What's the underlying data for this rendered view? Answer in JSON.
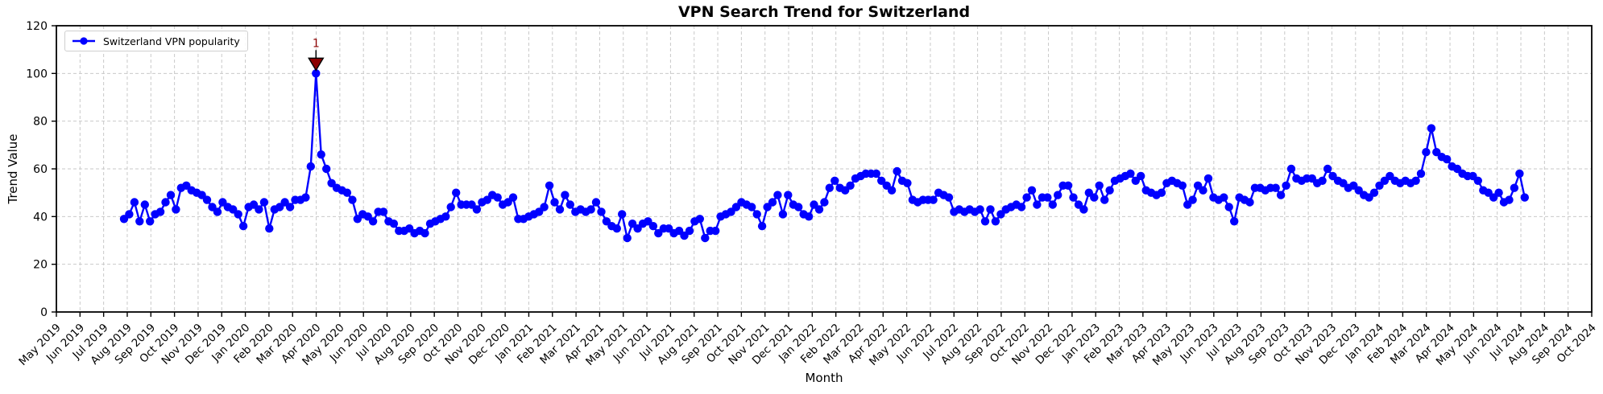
{
  "chart_data": {
    "type": "line",
    "title": "VPN Search Trend for Switzerland",
    "xlabel": "Month",
    "ylabel": "Trend Value",
    "legend": {
      "position": "upper left",
      "label": "Switzerland VPN popularity"
    },
    "grid": true,
    "ylim": [
      0,
      120
    ],
    "yticks": [
      0,
      20,
      40,
      60,
      80,
      100,
      120
    ],
    "x_tick_labels": [
      "May 2019",
      "Jun 2019",
      "Jul 2019",
      "Aug 2019",
      "Sep 2019",
      "Oct 2019",
      "Nov 2019",
      "Dec 2019",
      "Jan 2020",
      "Feb 2020",
      "Mar 2020",
      "Apr 2020",
      "May 2020",
      "Jun 2020",
      "Jul 2020",
      "Aug 2020",
      "Sep 2020",
      "Oct 2020",
      "Nov 2020",
      "Dec 2020",
      "Jan 2021",
      "Feb 2021",
      "Mar 2021",
      "Apr 2021",
      "May 2021",
      "Jun 2021",
      "Jul 2021",
      "Aug 2021",
      "Sep 2021",
      "Oct 2021",
      "Nov 2021",
      "Dec 2021",
      "Jan 2022",
      "Feb 2022",
      "Mar 2022",
      "Apr 2022",
      "May 2022",
      "Jun 2022",
      "Jul 2022",
      "Aug 2022",
      "Sep 2022",
      "Oct 2022",
      "Nov 2022",
      "Dec 2022",
      "Jan 2023",
      "Feb 2023",
      "Mar 2023",
      "Apr 2023",
      "May 2023",
      "Jun 2023",
      "Jul 2023",
      "Aug 2023",
      "Sep 2023",
      "Oct 2023",
      "Nov 2023",
      "Dec 2023",
      "Jan 2024",
      "Feb 2024",
      "Mar 2024",
      "Apr 2024",
      "May 2024",
      "Jun 2024",
      "Jul 2024",
      "Aug 2024",
      "Sep 2024",
      "Oct 2024"
    ],
    "series": [
      {
        "name": "Switzerland VPN popularity",
        "color": "#0000ff",
        "marker": "circle",
        "cadence": "weekly",
        "values": [
          39,
          41,
          46,
          38,
          45,
          38,
          41,
          42,
          46,
          49,
          43,
          52,
          53,
          51,
          50,
          49,
          47,
          44,
          42,
          46,
          44,
          43,
          41,
          36,
          44,
          45,
          43,
          46,
          35,
          43,
          44,
          46,
          44,
          47,
          47,
          48,
          61,
          100,
          66,
          60,
          54,
          52,
          51,
          50,
          47,
          39,
          41,
          40,
          38,
          42,
          42,
          38,
          37,
          34,
          34,
          35,
          33,
          34,
          33,
          37,
          38,
          39,
          40,
          44,
          50,
          45,
          45,
          45,
          43,
          46,
          47,
          49,
          48,
          45,
          46,
          48,
          39,
          39,
          40,
          41,
          42,
          44,
          53,
          46,
          43,
          49,
          45,
          42,
          43,
          42,
          43,
          46,
          42,
          38,
          36,
          35,
          41,
          31,
          37,
          35,
          37,
          38,
          36,
          33,
          35,
          35,
          33,
          34,
          32,
          34,
          38,
          39,
          31,
          34,
          34,
          40,
          41,
          42,
          44,
          46,
          45,
          44,
          41,
          36,
          44,
          46,
          49,
          41,
          49,
          45,
          44,
          41,
          40,
          45,
          43,
          46,
          52,
          55,
          52,
          51,
          53,
          56,
          57,
          58,
          58,
          58,
          55,
          53,
          51,
          59,
          55,
          54,
          47,
          46,
          47,
          47,
          47,
          50,
          49,
          48,
          42,
          43,
          42,
          43,
          42,
          43,
          38,
          43,
          38,
          41,
          43,
          44,
          45,
          44,
          48,
          51,
          45,
          48,
          48,
          45,
          49,
          53,
          53,
          48,
          45,
          43,
          50,
          48,
          53,
          47,
          51,
          55,
          56,
          57,
          58,
          55,
          57,
          51,
          50,
          49,
          50,
          54,
          55,
          54,
          53,
          45,
          47,
          53,
          51,
          56,
          48,
          47,
          48,
          44,
          38,
          48,
          47,
          46,
          52,
          52,
          51,
          52,
          52,
          49,
          53,
          60,
          56,
          55,
          56,
          56,
          54,
          55,
          60,
          57,
          55,
          54,
          52,
          53,
          51,
          49,
          48,
          50,
          53,
          55,
          57,
          55,
          54,
          55,
          54,
          55,
          58,
          67,
          77,
          67,
          65,
          64,
          61,
          60,
          58,
          57,
          57,
          55,
          51,
          50,
          48,
          50,
          46,
          47,
          52,
          58,
          48
        ]
      }
    ],
    "annotations": [
      {
        "text": "1",
        "series": 0,
        "point_index": 37,
        "value": 100,
        "color": "#8b0000",
        "marker": "triangle-down"
      }
    ],
    "style": {
      "line_color": "#0000ff",
      "grid_color": "#c9c9c9",
      "axis_color": "#000000",
      "annotation_color": "#8b0000",
      "background": "#ffffff"
    }
  }
}
